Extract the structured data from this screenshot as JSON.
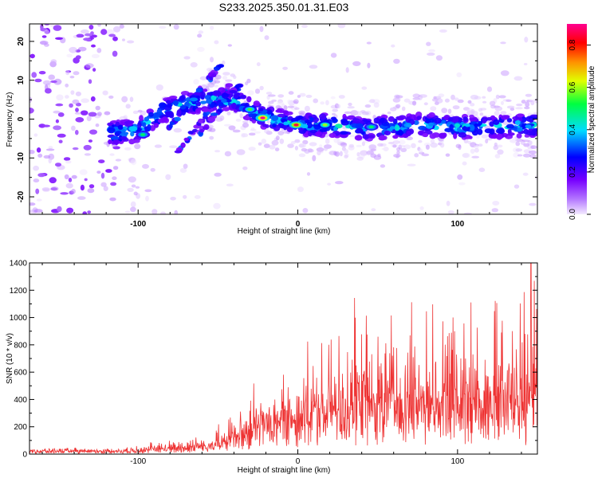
{
  "chart_data": [
    {
      "type": "heatmap",
      "title": "S233.2025.350.01.31.E03",
      "xlabel": "Height of straight line (km)",
      "ylabel": "Frequency (Hz)",
      "xlim": [
        -168,
        150
      ],
      "ylim": [
        -24.5,
        24.5
      ],
      "x_ticks": [
        -100,
        0,
        100
      ],
      "y_ticks": [
        20,
        10,
        0,
        -10,
        -20
      ],
      "colorbar": {
        "label": "Normalized spectral amplitude",
        "range": [
          0,
          0.9
        ],
        "ticks": [
          0.0,
          0.2,
          0.4,
          0.6,
          0.8
        ],
        "colormap": [
          "#e9d6ff",
          "#8000ff",
          "#0000ff",
          "#00e0ff",
          "#00ff00",
          "#ffff00",
          "#ff8000",
          "#ff0000",
          "#ff0080"
        ]
      },
      "ridge": {
        "description": "main high-amplitude band",
        "x": [
          -115,
          -100,
          -85,
          -70,
          -55,
          -40,
          -30,
          -20,
          -10,
          0,
          20,
          40,
          60,
          80,
          100,
          120,
          150
        ],
        "frequency": [
          -3.5,
          -3,
          2,
          4,
          5,
          5,
          2.5,
          0.5,
          -0.5,
          -1.5,
          -1.5,
          -2.5,
          -2,
          -1.5,
          -2,
          -2,
          -1.5
        ]
      },
      "diagonal_streaks": [
        {
          "x": [
            -82,
            -48
          ],
          "frequency": [
            -3,
            14
          ]
        },
        {
          "x": [
            -75,
            -40
          ],
          "frequency": [
            -8,
            10
          ]
        },
        {
          "x": [
            -62,
            -36
          ],
          "frequency": [
            -4,
            9
          ]
        }
      ],
      "peaks": [
        {
          "x": -22,
          "frequency": 0.3,
          "amplitude": 0.9
        },
        {
          "x": -1,
          "frequency": -1.5,
          "amplitude": 0.85
        },
        {
          "x": 17,
          "frequency": -1.5,
          "amplitude": 0.6
        },
        {
          "x": -97,
          "frequency": -4,
          "amplitude": 0.5
        },
        {
          "x": -30,
          "frequency": 2.5,
          "amplitude": 0.55
        },
        {
          "x": 46,
          "frequency": -2,
          "amplitude": 0.5
        }
      ]
    },
    {
      "type": "line",
      "title": "",
      "xlabel": "Height of straight line (km)",
      "ylabel": "SNR (10 * v/v)",
      "xlim": [
        -168,
        150
      ],
      "ylim": [
        0,
        1400
      ],
      "x_ticks": [
        -100,
        0,
        100
      ],
      "y_ticks": [
        0,
        200,
        400,
        600,
        800,
        1000,
        1200,
        1400
      ],
      "color": "#ee3333",
      "envelope": {
        "x": [
          -168,
          -110,
          -100,
          -80,
          -60,
          -50,
          -40,
          -30,
          -20,
          -10,
          0,
          10,
          20,
          40,
          60,
          80,
          100,
          120,
          140,
          150
        ],
        "baseline": [
          20,
          20,
          22,
          30,
          45,
          60,
          90,
          150,
          200,
          220,
          230,
          240,
          260,
          290,
          300,
          310,
          300,
          310,
          320,
          330
        ],
        "peak": [
          40,
          45,
          70,
          120,
          160,
          220,
          300,
          480,
          500,
          520,
          620,
          850,
          1050,
          1050,
          1070,
          1080,
          1150,
          1150,
          1330,
          1400
        ]
      },
      "max_point": {
        "x": 146,
        "y": 1400
      }
    }
  ]
}
